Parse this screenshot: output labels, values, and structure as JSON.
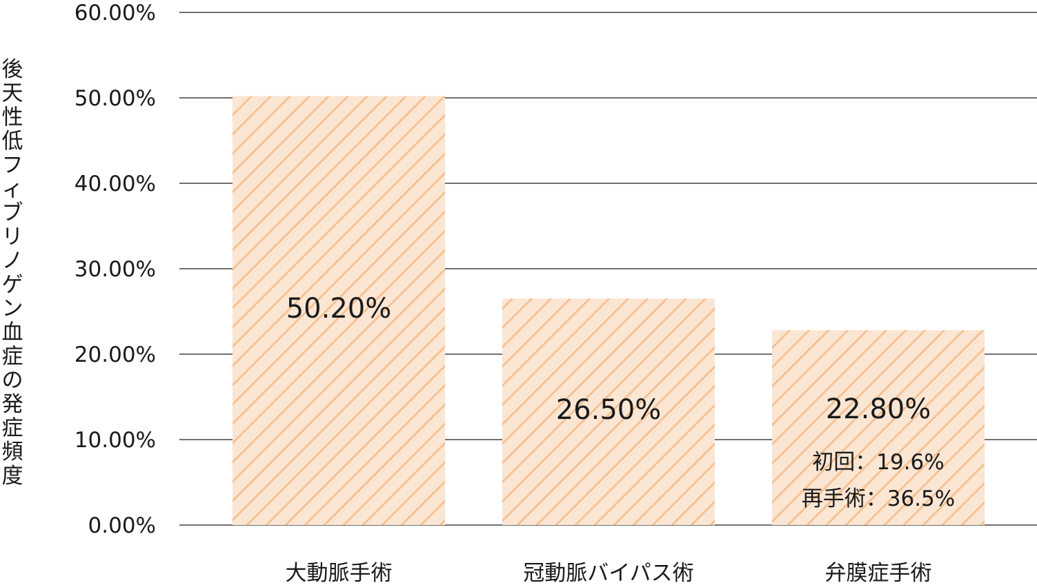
{
  "chart_data": {
    "type": "bar",
    "ylabel": "後天性低フィブリノゲン血症の発症頻度",
    "xlabel": "",
    "ylim": [
      0,
      60
    ],
    "yticks": [
      0,
      10,
      20,
      30,
      40,
      50,
      60
    ],
    "ytick_labels": [
      "0.00%",
      "10.00%",
      "20.00%",
      "30.00%",
      "40.00%",
      "50.00%",
      "60.00%"
    ],
    "categories": [
      "大動脈手術",
      "冠動脈バイパス術",
      "弁膜症手術"
    ],
    "values": [
      50.2,
      26.5,
      22.8
    ],
    "value_labels": [
      "50.20%",
      "26.50%",
      "22.80%"
    ],
    "annotations": [
      {
        "category_index": 2,
        "lines": [
          "初回：19.6%",
          "再手術：36.5%"
        ]
      }
    ],
    "grid": true,
    "legend": "none",
    "colors": {
      "bar_fill": "#fbe5d3",
      "bar_hatch": "#f6be8c",
      "gridline": "#1a1a1a",
      "text": "#1a1a1a"
    }
  }
}
